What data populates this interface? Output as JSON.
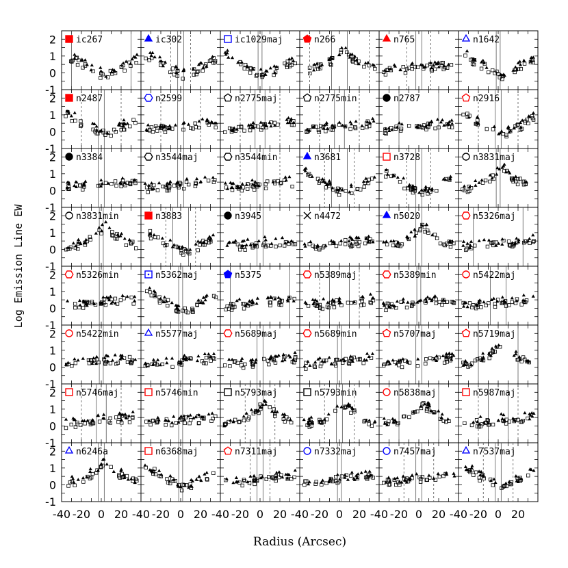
{
  "chart_data": {
    "type": "scatter",
    "xlabel": "Radius (Arcsec)",
    "ylabel": "Log Emission Line EW",
    "xlim": [
      -40,
      40
    ],
    "ylim": [
      -1,
      2.5
    ],
    "x_ticks": [
      -40,
      -20,
      0,
      20
    ],
    "y_ticks": [
      -1,
      0,
      1,
      2
    ],
    "x_tick_labels": [
      "-40",
      "-20",
      "0",
      "20"
    ],
    "y_tick_labels": [
      "-1",
      "0",
      "1",
      "2"
    ],
    "grid": false,
    "layout": "8 rows x 6 columns of panels",
    "profile_shapes": {
      "flat": [
        0.1,
        0.1,
        0.15,
        0.2,
        0.25,
        0.35,
        0.35,
        0.4,
        0.45,
        0.5
      ],
      "peak": [
        0.0,
        0.1,
        0.25,
        0.5,
        0.8,
        1.3,
        0.8,
        0.5,
        0.25,
        0.05
      ],
      "dip": [
        1.2,
        0.9,
        0.6,
        0.3,
        0.0,
        -0.2,
        0.0,
        0.3,
        0.6,
        0.9
      ]
    },
    "panels": [
      {
        "name": "ic267",
        "marker": "filled-square",
        "color": "#ff0000",
        "shape": "dip",
        "lines": [
          -30,
          30
        ],
        "dlines": []
      },
      {
        "name": "ic302",
        "marker": "filled-triangle",
        "color": "#0000ff",
        "shape": "dip",
        "lines": [
          -3,
          3
        ],
        "dlines": [
          -10,
          10
        ]
      },
      {
        "name": "ic1029maj",
        "marker": "open-square",
        "color": "#0000ff",
        "shape": "dip",
        "lines": [
          -2,
          2
        ],
        "dlines": []
      },
      {
        "name": "n266",
        "marker": "filled-pentagon",
        "color": "#ff0000",
        "shape": "peak",
        "lines": [
          -8,
          8
        ],
        "dlines": [
          -30,
          30
        ]
      },
      {
        "name": "n765",
        "marker": "filled-triangle",
        "color": "#ff0000",
        "shape": "flat",
        "lines": [
          -3,
          3
        ],
        "dlines": [
          -12,
          12
        ]
      },
      {
        "name": "n1642",
        "marker": "open-triangle",
        "color": "#0000ff",
        "shape": "dip",
        "lines": [
          -2,
          2
        ],
        "dlines": []
      },
      {
        "name": "n2487",
        "marker": "filled-square",
        "color": "#ff0000",
        "shape": "dip",
        "lines": [
          -3,
          3
        ],
        "dlines": [
          -20,
          20
        ]
      },
      {
        "name": "n2599",
        "marker": "open-hexagon",
        "color": "#0000ff",
        "shape": "flat",
        "lines": [
          -3,
          3
        ],
        "dlines": [
          -20,
          20
        ]
      },
      {
        "name": "n2775maj",
        "marker": "open-pentagon",
        "color": "#000000",
        "shape": "flat",
        "lines": [
          -5,
          5
        ],
        "dlines": [
          -20,
          20
        ]
      },
      {
        "name": "n2775min",
        "marker": "open-pentagon",
        "color": "#000000",
        "shape": "flat",
        "lines": [
          -5,
          5
        ],
        "dlines": [
          -20,
          20
        ]
      },
      {
        "name": "n2787",
        "marker": "filled-circle",
        "color": "#000000",
        "shape": "flat",
        "lines": [
          -20,
          20
        ],
        "dlines": []
      },
      {
        "name": "n2916",
        "marker": "open-pentagon",
        "color": "#ff0000",
        "shape": "dip",
        "lines": [
          -3,
          3
        ],
        "dlines": [
          -20,
          20
        ]
      },
      {
        "name": "n3384",
        "marker": "filled-circle",
        "color": "#000000",
        "shape": "flat",
        "lines": [
          -3,
          3
        ],
        "dlines": []
      },
      {
        "name": "n3544maj",
        "marker": "open-hexagon",
        "color": "#000000",
        "shape": "flat",
        "lines": [
          -3,
          3
        ],
        "dlines": []
      },
      {
        "name": "n3544min",
        "marker": "open-hexagon",
        "color": "#000000",
        "shape": "flat",
        "lines": [
          -3,
          3
        ],
        "dlines": [
          -20,
          20
        ]
      },
      {
        "name": "n3681",
        "marker": "filled-triangle",
        "color": "#0000ff",
        "shape": "dip",
        "lines": [
          -8,
          8
        ],
        "dlines": [
          -15,
          15
        ]
      },
      {
        "name": "n3728",
        "marker": "open-square",
        "color": "#ff0000",
        "shape": "dip",
        "lines": [
          -3,
          3
        ],
        "dlines": [
          -12,
          12
        ]
      },
      {
        "name": "n3831maj",
        "marker": "open-circle",
        "color": "#000000",
        "shape": "peak",
        "lines": [
          -2,
          2
        ],
        "dlines": []
      },
      {
        "name": "n3831min",
        "marker": "open-circle",
        "color": "#000000",
        "shape": "peak",
        "lines": [
          -2,
          2
        ],
        "dlines": []
      },
      {
        "name": "n3883",
        "marker": "filled-square",
        "color": "#ff0000",
        "shape": "dip",
        "lines": [
          -8,
          8
        ],
        "dlines": [
          -15,
          15
        ]
      },
      {
        "name": "n3945",
        "marker": "filled-circle",
        "color": "#000000",
        "shape": "flat",
        "lines": [
          -3,
          3
        ],
        "dlines": []
      },
      {
        "name": "n4472",
        "marker": "cross",
        "color": "#000000",
        "shape": "flat",
        "lines": [],
        "dlines": []
      },
      {
        "name": "n5020",
        "marker": "filled-triangle",
        "color": "#0000ff",
        "shape": "peak",
        "lines": [
          -3,
          3
        ],
        "dlines": []
      },
      {
        "name": "n5326maj",
        "marker": "open-hexagon",
        "color": "#ff0000",
        "shape": "flat",
        "lines": [
          -25,
          25
        ],
        "dlines": []
      },
      {
        "name": "n5326min",
        "marker": "open-hexagon",
        "color": "#ff0000",
        "shape": "flat",
        "lines": [
          -2,
          2
        ],
        "dlines": []
      },
      {
        "name": "n5362maj",
        "marker": "dotted-square",
        "color": "#0000ff",
        "shape": "dip",
        "lines": [
          -2,
          2
        ],
        "dlines": []
      },
      {
        "name": "n5375",
        "marker": "filled-pentagon",
        "color": "#0000ff",
        "shape": "flat",
        "lines": [
          -30,
          30
        ],
        "dlines": []
      },
      {
        "name": "n5389maj",
        "marker": "open-hexagon",
        "color": "#ff0000",
        "shape": "flat",
        "lines": [
          -10,
          10
        ],
        "dlines": [
          -20,
          20
        ]
      },
      {
        "name": "n5389min",
        "marker": "open-hexagon",
        "color": "#ff0000",
        "shape": "flat",
        "lines": [
          -2,
          2
        ],
        "dlines": []
      },
      {
        "name": "n5422maj",
        "marker": "open-circle",
        "color": "#ff0000",
        "shape": "flat",
        "lines": [
          -8,
          8
        ],
        "dlines": []
      },
      {
        "name": "n5422min",
        "marker": "open-circle",
        "color": "#ff0000",
        "shape": "flat",
        "lines": [
          -2,
          2
        ],
        "dlines": []
      },
      {
        "name": "n5577maj",
        "marker": "open-triangle",
        "color": "#0000ff",
        "shape": "flat",
        "lines": [
          -2,
          2
        ],
        "dlines": []
      },
      {
        "name": "n5689maj",
        "marker": "open-hexagon",
        "color": "#ff0000",
        "shape": "flat",
        "lines": [
          -3,
          3
        ],
        "dlines": []
      },
      {
        "name": "n5689min",
        "marker": "open-hexagon",
        "color": "#ff0000",
        "shape": "flat",
        "lines": [
          -2,
          2
        ],
        "dlines": []
      },
      {
        "name": "n5707maj",
        "marker": "open-pentagon",
        "color": "#ff0000",
        "shape": "flat",
        "lines": [
          -3,
          3
        ],
        "dlines": []
      },
      {
        "name": "n5719maj",
        "marker": "open-pentagon",
        "color": "#ff0000",
        "shape": "peak",
        "lines": [
          -20,
          20
        ],
        "dlines": []
      },
      {
        "name": "n5746maj",
        "marker": "open-square",
        "color": "#ff0000",
        "shape": "flat",
        "lines": [
          -5,
          5
        ],
        "dlines": [
          -20,
          20
        ]
      },
      {
        "name": "n5746min",
        "marker": "open-square",
        "color": "#ff0000",
        "shape": "flat",
        "lines": [
          -2,
          2
        ],
        "dlines": []
      },
      {
        "name": "n5793maj",
        "marker": "open-square",
        "color": "#000000",
        "shape": "peak",
        "lines": [
          -3,
          3
        ],
        "dlines": [
          -15,
          15
        ]
      },
      {
        "name": "n5793min",
        "marker": "open-square",
        "color": "#000000",
        "shape": "peak",
        "lines": [
          -3,
          3
        ],
        "dlines": [
          -15,
          15
        ]
      },
      {
        "name": "n5838maj",
        "marker": "open-circle",
        "color": "#ff0000",
        "shape": "peak",
        "lines": [
          -20,
          20
        ],
        "dlines": []
      },
      {
        "name": "n5987maj",
        "marker": "open-square",
        "color": "#ff0000",
        "shape": "flat",
        "lines": [
          -10,
          10
        ],
        "dlines": [
          -20,
          20
        ]
      },
      {
        "name": "n6246a",
        "marker": "open-triangle",
        "color": "#0000ff",
        "shape": "peak",
        "lines": [
          -3,
          3
        ],
        "dlines": []
      },
      {
        "name": "n6368maj",
        "marker": "open-square",
        "color": "#ff0000",
        "shape": "dip",
        "lines": [
          -2,
          2
        ],
        "dlines": []
      },
      {
        "name": "n7311maj",
        "marker": "open-pentagon",
        "color": "#ff0000",
        "shape": "flat",
        "lines": [
          -3,
          3
        ],
        "dlines": [
          -10,
          10
        ]
      },
      {
        "name": "n7332maj",
        "marker": "open-circle",
        "color": "#0000ff",
        "shape": "flat",
        "lines": [
          -2,
          2
        ],
        "dlines": []
      },
      {
        "name": "n7457maj",
        "marker": "open-circle",
        "color": "#0000ff",
        "shape": "flat",
        "lines": [
          -3,
          3
        ],
        "dlines": [
          -15,
          15
        ]
      },
      {
        "name": "n7537maj",
        "marker": "open-triangle",
        "color": "#0000ff",
        "shape": "dip",
        "lines": [
          -3,
          3
        ],
        "dlines": [
          -15,
          15
        ]
      }
    ]
  }
}
